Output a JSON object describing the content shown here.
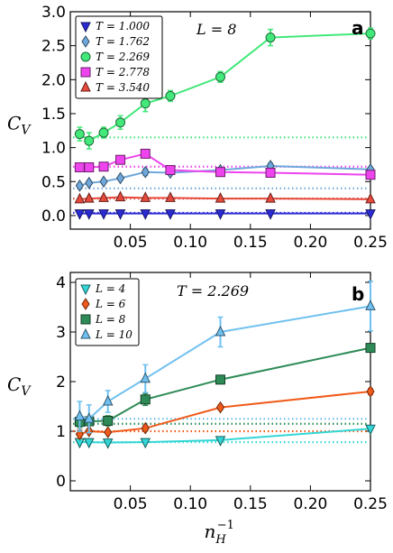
{
  "chart_data": [
    {
      "type": "line",
      "panel": "a",
      "annotation": "L = 8",
      "ylabel": "C_V",
      "xlabel": "",
      "xlim": [
        0.0,
        0.25
      ],
      "ylim": [
        -0.2,
        3.0
      ],
      "xticks": [
        "0.05",
        "0.10",
        "0.15",
        "0.20",
        "0.25"
      ],
      "yticks": [
        "0.0",
        "0.5",
        "1.0",
        "1.5",
        "2.0",
        "2.5",
        "3.0"
      ],
      "legend_position": "top-left",
      "series": [
        {
          "name": "T = 1.000",
          "color": "#2b2bd6",
          "marker": "triangle-down",
          "x": [
            0.0078,
            0.0156,
            0.0278,
            0.0417,
            0.0625,
            0.0833,
            0.125,
            0.1667,
            0.25
          ],
          "y": [
            0.03,
            0.03,
            0.03,
            0.03,
            0.03,
            0.03,
            0.03,
            0.03,
            0.03
          ],
          "err": [
            0,
            0,
            0,
            0,
            0,
            0,
            0,
            0,
            0
          ],
          "baseline": 0.04
        },
        {
          "name": "T = 1.762",
          "color": "#6fa8dc",
          "marker": "diamond",
          "x": [
            0.0078,
            0.0156,
            0.0278,
            0.0417,
            0.0625,
            0.0833,
            0.125,
            0.1667,
            0.25
          ],
          "y": [
            0.44,
            0.48,
            0.5,
            0.55,
            0.64,
            0.63,
            0.67,
            0.73,
            0.68
          ],
          "err": [
            0,
            0,
            0,
            0.03,
            0.05,
            0.03,
            0.03,
            0.04,
            0.03
          ],
          "baseline": 0.4
        },
        {
          "name": "T = 2.269",
          "color": "#43e87a",
          "marker": "circle",
          "x": [
            0.0078,
            0.0156,
            0.0278,
            0.0417,
            0.0625,
            0.0833,
            0.125,
            0.1667,
            0.25
          ],
          "y": [
            1.2,
            1.1,
            1.22,
            1.37,
            1.65,
            1.76,
            2.04,
            2.62,
            2.68
          ],
          "err": [
            0.1,
            0.12,
            0.08,
            0.1,
            0.12,
            0.08,
            0.08,
            0.12,
            0.08
          ],
          "baseline": 1.15
        },
        {
          "name": "T = 2.778",
          "color": "#ee44ee",
          "marker": "square",
          "x": [
            0.0078,
            0.0156,
            0.0278,
            0.0417,
            0.0625,
            0.0833,
            0.125,
            0.1667,
            0.25
          ],
          "y": [
            0.71,
            0.71,
            0.72,
            0.82,
            0.91,
            0.67,
            0.64,
            0.63,
            0.6
          ],
          "err": [
            0,
            0,
            0,
            0,
            0,
            0,
            0,
            0,
            0
          ],
          "baseline": 0.72
        },
        {
          "name": "T = 3.540",
          "color": "#e64a3c",
          "marker": "triangle-up",
          "x": [
            0.0078,
            0.0156,
            0.0278,
            0.0417,
            0.0625,
            0.0833,
            0.125,
            0.1667,
            0.25
          ],
          "y": [
            0.24,
            0.25,
            0.26,
            0.27,
            0.26,
            0.26,
            0.25,
            0.25,
            0.24
          ],
          "err": [
            0,
            0,
            0,
            0,
            0,
            0,
            0,
            0,
            0
          ],
          "baseline": 0.25
        }
      ]
    },
    {
      "type": "line",
      "panel": "b",
      "annotation": "T = 2.269",
      "ylabel": "C_V",
      "xlabel": "n_H^-1",
      "xlim": [
        0.0,
        0.25
      ],
      "ylim": [
        -0.2,
        4.2
      ],
      "xticks": [
        "0.05",
        "0.10",
        "0.15",
        "0.20",
        "0.25"
      ],
      "yticks": [
        "0",
        "1",
        "2",
        "3",
        "4"
      ],
      "legend_position": "top-left",
      "series": [
        {
          "name": "L = 4",
          "color": "#33d6d6",
          "marker": "triangle-down",
          "x": [
            0.0078,
            0.0156,
            0.0313,
            0.0625,
            0.125,
            0.25
          ],
          "y": [
            0.78,
            0.78,
            0.77,
            0.78,
            0.82,
            1.05
          ],
          "err": [
            0,
            0,
            0,
            0,
            0,
            0
          ],
          "baseline": 0.78
        },
        {
          "name": "L = 6",
          "color": "#f05a1a",
          "marker": "diamond",
          "x": [
            0.0078,
            0.0156,
            0.0313,
            0.0625,
            0.125,
            0.25
          ],
          "y": [
            0.94,
            1.0,
            0.98,
            1.06,
            1.48,
            1.8
          ],
          "err": [
            0.08,
            0,
            0,
            0.05,
            0.05,
            0.06
          ],
          "baseline": 1.0
        },
        {
          "name": "L = 8",
          "color": "#2e8b57",
          "marker": "square",
          "x": [
            0.0078,
            0.0156,
            0.0313,
            0.0625,
            0.125,
            0.25
          ],
          "y": [
            1.19,
            1.2,
            1.21,
            1.64,
            2.04,
            2.68
          ],
          "err": [
            0.12,
            0.08,
            0.1,
            0.12,
            0.06,
            0.08
          ],
          "baseline": 1.15
        },
        {
          "name": "L = 10",
          "color": "#6fc0f0",
          "marker": "triangle-up",
          "x": [
            0.0078,
            0.0156,
            0.0313,
            0.0625,
            0.125,
            0.25
          ],
          "y": [
            1.3,
            1.25,
            1.6,
            2.06,
            3.0,
            3.52
          ],
          "err": [
            0.3,
            0.28,
            0.22,
            0.28,
            0.3,
            0.5
          ],
          "baseline": 1.25
        }
      ]
    }
  ]
}
